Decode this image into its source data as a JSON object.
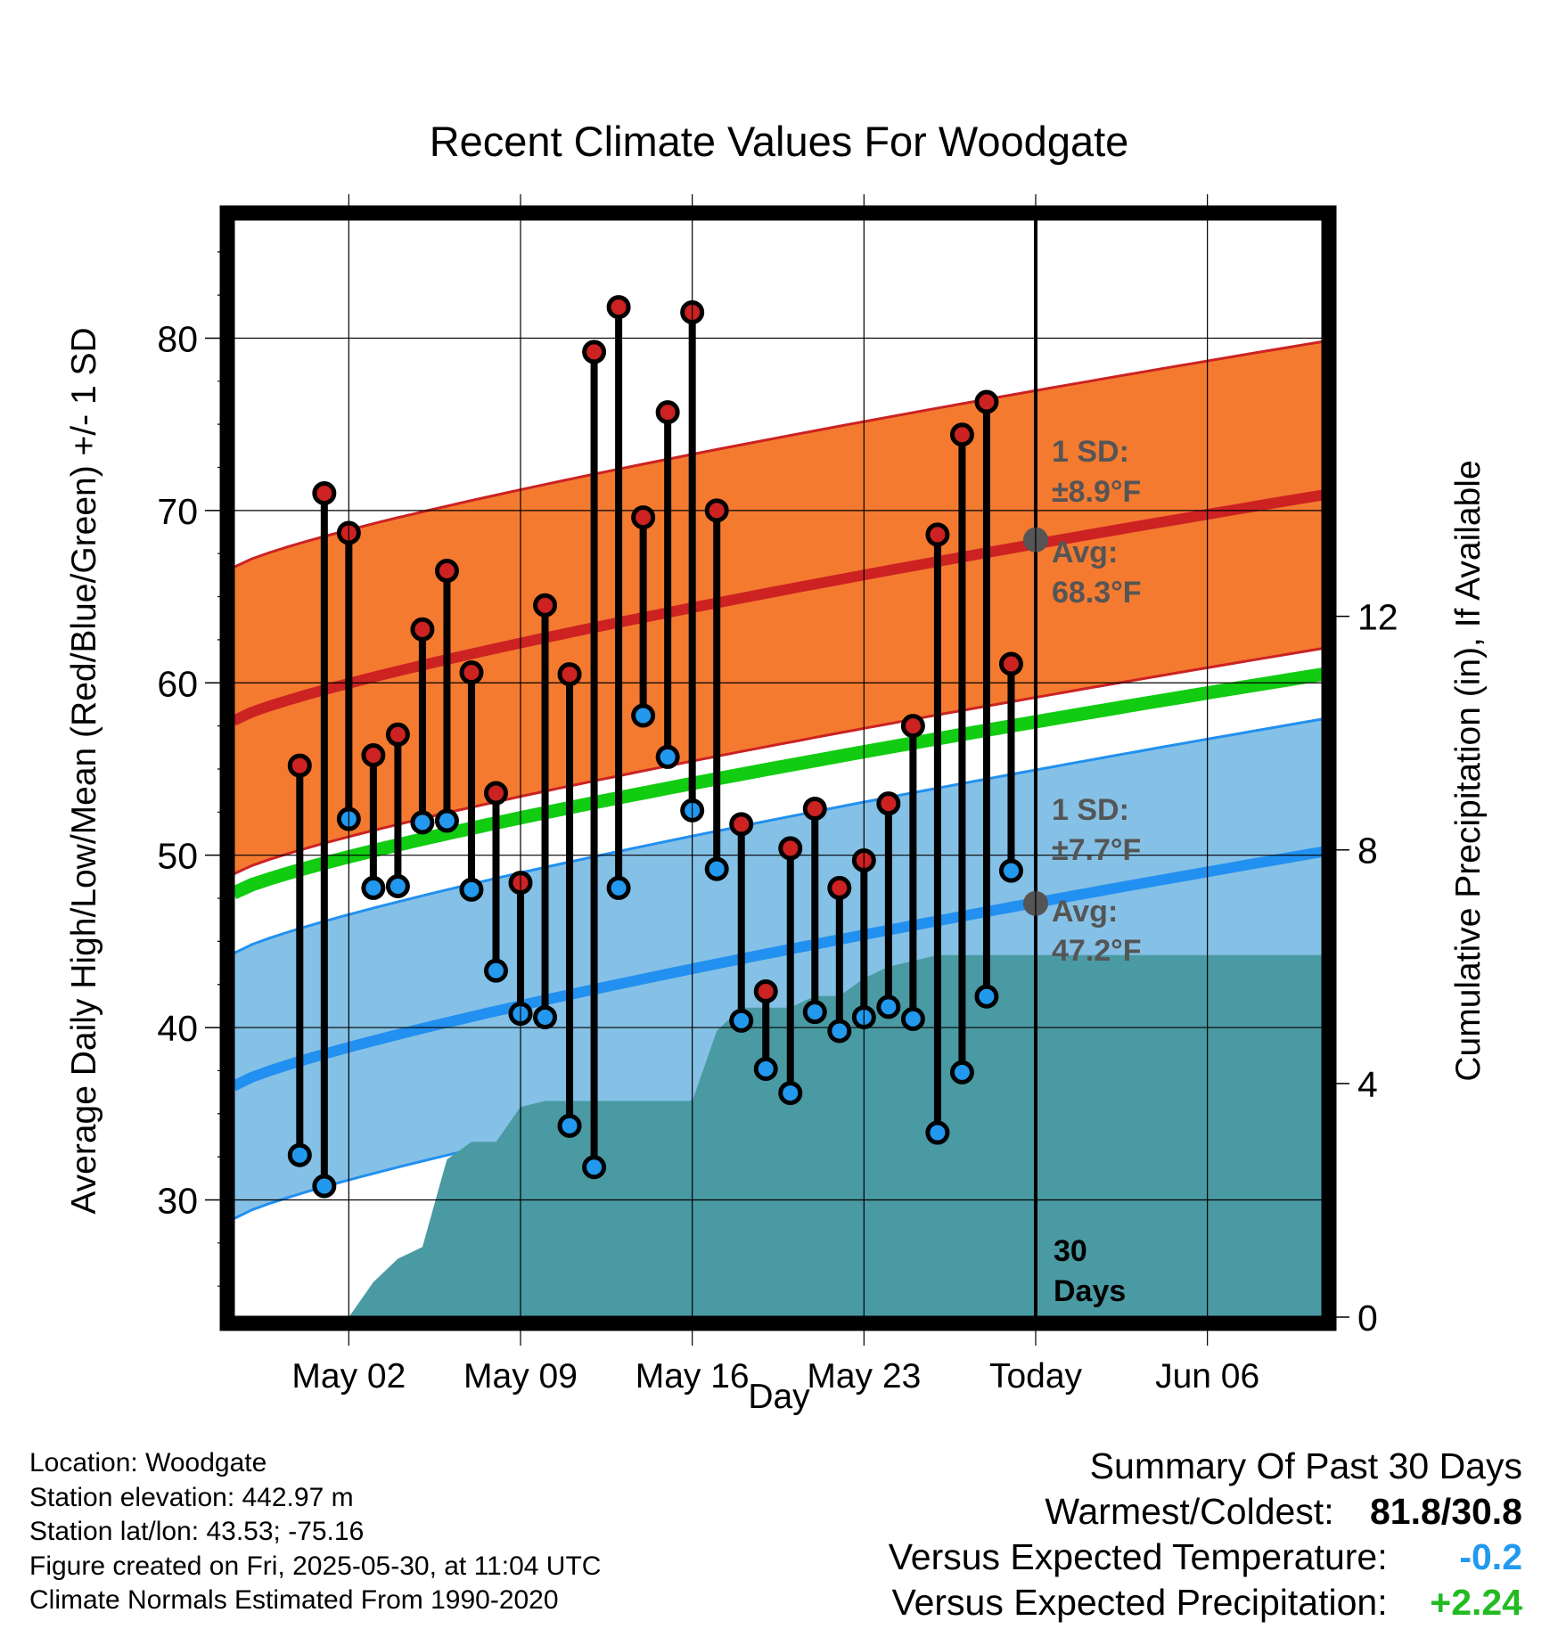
{
  "title": "Recent Climate Values For Woodgate",
  "chart_data": {
    "type": "line",
    "title": "Recent Climate Values For Woodgate",
    "xlabel": "Day",
    "ylabel_left": "Average Daily High/Low/Mean (Red/Blue/Green) +/- 1 SD",
    "ylabel_right": "Cumulative Precipitation (in), If Available",
    "x_day_range": [
      -2.7,
      41.7
    ],
    "x_tick_days": [
      2,
      9,
      16,
      23,
      30,
      37
    ],
    "x_tick_labels": [
      "May 02",
      "May 09",
      "May 16",
      "May 23",
      "Today",
      "Jun 06"
    ],
    "y_left_range": [
      23.2,
      86.9
    ],
    "y_left_ticks": [
      30,
      40,
      50,
      60,
      70,
      80
    ],
    "y_right_range": [
      0,
      18.8
    ],
    "y_right_ticks": [
      0,
      4,
      8,
      12
    ],
    "today_day": 30,
    "normals": {
      "high_avg_start": 57.8,
      "high_avg_end": 70.9,
      "high_sd": 8.9,
      "low_avg_start": 36.6,
      "low_avg_end": 50.2,
      "low_sd": 7.7,
      "mean_start": 47.8,
      "mean_end": 60.5
    },
    "series": [
      {
        "name": "Daily High",
        "color": "#cc2222",
        "days": [
          0,
          1,
          2,
          3,
          4,
          5,
          6,
          7,
          8,
          9,
          10,
          11,
          12,
          13,
          14,
          15,
          16,
          17,
          18,
          19,
          20,
          21,
          22,
          23,
          24,
          25,
          26,
          27,
          28,
          29
        ],
        "values": [
          55.2,
          71.0,
          68.7,
          55.8,
          57.0,
          63.1,
          66.5,
          60.6,
          53.6,
          48.4,
          64.5,
          60.5,
          79.2,
          81.8,
          69.6,
          75.7,
          81.5,
          70.0,
          51.8,
          42.1,
          50.4,
          52.7,
          48.1,
          49.7,
          53.0,
          57.5,
          68.6,
          74.4,
          76.3,
          61.1
        ]
      },
      {
        "name": "Daily Low",
        "color": "#2299ee",
        "days": [
          0,
          1,
          2,
          3,
          4,
          5,
          6,
          7,
          8,
          9,
          10,
          11,
          12,
          13,
          14,
          15,
          16,
          17,
          18,
          19,
          20,
          21,
          22,
          23,
          24,
          25,
          26,
          27,
          28,
          29
        ],
        "values": [
          32.6,
          30.8,
          52.1,
          48.1,
          48.2,
          51.9,
          52.0,
          48.0,
          43.3,
          40.8,
          40.6,
          34.3,
          31.9,
          48.1,
          58.1,
          55.7,
          52.6,
          49.2,
          40.4,
          37.6,
          36.2,
          40.9,
          39.8,
          40.6,
          41.2,
          40.5,
          33.9,
          37.4,
          41.8,
          49.1
        ]
      },
      {
        "name": "Cumulative Precipitation",
        "color": "#4a9aa3",
        "days": [
          2,
          3,
          4,
          5,
          6,
          7,
          8,
          9,
          10,
          11,
          12,
          13,
          14,
          15,
          16,
          17,
          18,
          19,
          20,
          21,
          22,
          23,
          24,
          25,
          26,
          27,
          28,
          29,
          30,
          31,
          32,
          33,
          34,
          35,
          36,
          37,
          38,
          39,
          40,
          41,
          41.7
        ],
        "values": [
          0,
          0.6,
          1.0,
          1.2,
          2.7,
          3.0,
          3.0,
          3.6,
          3.7,
          3.7,
          3.7,
          3.7,
          3.7,
          3.7,
          3.7,
          4.9,
          5.3,
          5.3,
          5.3,
          5.5,
          5.5,
          5.8,
          6.0,
          6.1,
          6.2,
          6.2,
          6.2,
          6.2,
          6.2,
          6.2,
          6.2,
          6.2,
          6.2,
          6.2,
          6.2,
          6.2,
          6.2,
          6.2,
          6.2,
          6.2,
          6.2
        ]
      }
    ],
    "annotations": {
      "high_sd_line1": "1 SD:",
      "high_sd_line2": "±8.9°F",
      "high_avg_line1": "Avg:",
      "high_avg_line2": "68.3°F",
      "high_avg_value": 68.3,
      "low_sd_line1": "1 SD:",
      "low_sd_line2": "±7.7°F",
      "low_avg_line1": "Avg:",
      "low_avg_line2": "47.2°F",
      "low_avg_value": 47.2,
      "days_line1": "30",
      "days_line2": "Days"
    },
    "colors": {
      "high_band": "#f47a30",
      "high_line": "#cc2222",
      "low_band": "#85c1e6",
      "low_line": "#2290f0",
      "mean_line": "#11cc11",
      "precip": "#4a9aa3",
      "marker_high": "#cc2222",
      "marker_low": "#2299ee",
      "annotation_text": "#555555"
    }
  },
  "info": {
    "location": "Location: Woodgate",
    "elevation": "Station elevation: 442.97 m",
    "latlon": "Station lat/lon: 43.53; -75.16",
    "created": "Figure created on Fri, 2025-05-30, at 11:04 UTC",
    "normals": "Climate Normals Estimated From 1990-2020"
  },
  "summary": {
    "heading": "Summary Of Past 30 Days",
    "warm_cold_label": "Warmest/Coldest:",
    "warm_cold_value": "81.8/30.8",
    "temp_label": "Versus Expected Temperature:",
    "temp_value": "-0.2",
    "temp_color": "#2299ee",
    "precip_label": "Versus Expected Precipitation:",
    "precip_value": "+2.24",
    "precip_color": "#22bb22"
  }
}
